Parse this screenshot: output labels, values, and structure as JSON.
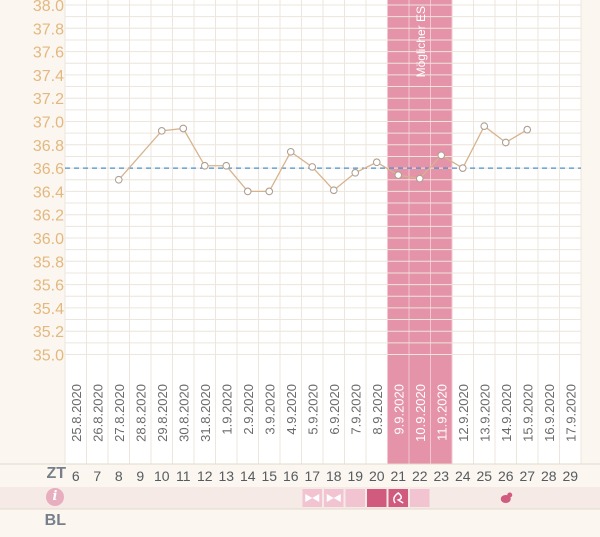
{
  "chart_data": {
    "type": "line",
    "x": [
      "25.8.2020",
      "26.8.2020",
      "27.8.2020",
      "28.8.2020",
      "29.8.2020",
      "30.8.2020",
      "31.8.2020",
      "1.9.2020",
      "2.9.2020",
      "3.9.2020",
      "4.9.2020",
      "5.9.2020",
      "6.9.2020",
      "7.9.2020",
      "8.9.2020",
      "9.9.2020",
      "10.9.2020",
      "11.9.2020",
      "12.9.2020",
      "13.9.2020",
      "14.9.2020",
      "15.9.2020",
      "16.9.2020",
      "17.9.2020"
    ],
    "cycle_days": [
      "6",
      "7",
      "8",
      "9",
      "10",
      "11",
      "12",
      "13",
      "14",
      "15",
      "16",
      "17",
      "18",
      "19",
      "20",
      "21",
      "22",
      "23",
      "24",
      "25",
      "26",
      "27",
      "28",
      "29"
    ],
    "values": [
      null,
      null,
      36.5,
      null,
      36.92,
      36.94,
      36.62,
      36.62,
      36.4,
      36.4,
      36.74,
      36.61,
      36.41,
      36.56,
      36.65,
      36.54,
      36.51,
      36.71,
      36.6,
      36.96,
      36.82,
      36.93,
      null,
      null
    ],
    "y_ticks": [
      "38.0",
      "37.8",
      "37.6",
      "37.4",
      "37.2",
      "37.0",
      "36.8",
      "36.6",
      "36.4",
      "36.2",
      "36.0",
      "35.8",
      "35.6",
      "35.4",
      "35.2",
      "35.0"
    ],
    "ylim": [
      35.0,
      38.0
    ],
    "coverline": 36.6,
    "highlight_days": [
      "9.9.2020",
      "10.9.2020",
      "11.9.2020"
    ],
    "band_label": "Möglicher ES",
    "grid": true
  },
  "rows": {
    "cycle_day_label": "ZT",
    "info_icon_letter": "i",
    "bleeding_label": "BL"
  },
  "info_marks": [
    {
      "day": "17",
      "icon": "bow-icon"
    },
    {
      "day": "18",
      "icon": "bow-icon"
    },
    {
      "day": "19",
      "icon": "none"
    },
    {
      "day": "20",
      "icon": "none"
    },
    {
      "day": "21",
      "icon": "swirl-icon"
    },
    {
      "day": "22",
      "icon": "none"
    },
    {
      "day": "26",
      "icon": "bird-icon"
    }
  ],
  "colors": {
    "line": "#d7b38c",
    "coverline": "#4a8fc9",
    "y_axis_text": "#e3b87f",
    "highlight_band": "#e493a9",
    "info_cell": "#f2c4d1",
    "info_cell_dark": "#d15a7f"
  }
}
